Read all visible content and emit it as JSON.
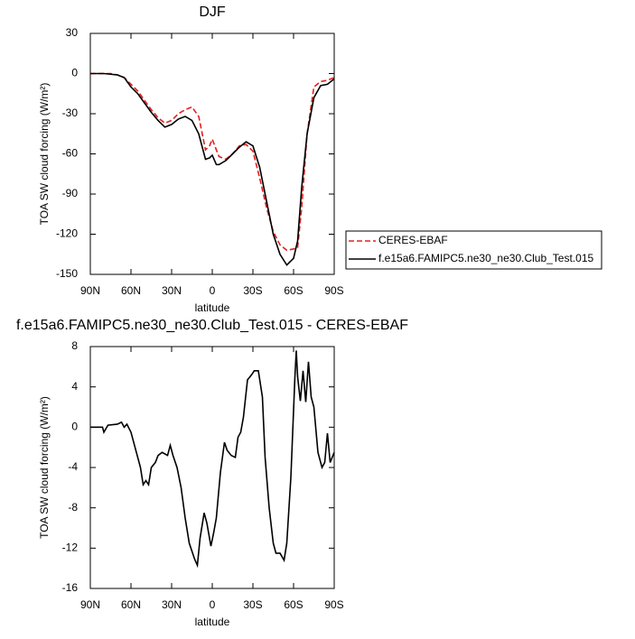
{
  "chart_data": [
    {
      "type": "line",
      "title": "DJF",
      "xlabel": "latitude",
      "ylabel": "TOA SW cloud forcing (W/m²)",
      "x": [
        90,
        85,
        80,
        75,
        70,
        65,
        60,
        55,
        50,
        45,
        40,
        35,
        30,
        25,
        20,
        15,
        10,
        5,
        2,
        0,
        -3,
        -5,
        -10,
        -15,
        -20,
        -25,
        -30,
        -35,
        -40,
        -45,
        -50,
        -55,
        -60,
        -63,
        -66,
        -70,
        -75,
        -80,
        -85,
        -90
      ],
      "xlim": [
        90,
        -90
      ],
      "xticks": [
        {
          "value": 90,
          "label": "90N"
        },
        {
          "value": 60,
          "label": "60N"
        },
        {
          "value": 30,
          "label": "30N"
        },
        0,
        {
          "value": -30,
          "label": "30S"
        },
        {
          "value": -60,
          "label": "60S"
        },
        {
          "value": -90,
          "label": "90S"
        }
      ],
      "ylim": [
        -150,
        30
      ],
      "yticks": [
        -150,
        -120,
        -90,
        -60,
        -30,
        0,
        30
      ],
      "legend": "right",
      "series": [
        {
          "name": "CERES-EBAF",
          "color": "#e32020",
          "style": "dashed",
          "values": [
            0,
            0,
            0,
            0,
            -1,
            -3,
            -8,
            -13,
            -20,
            -27,
            -33,
            -37,
            -35,
            -30,
            -27,
            -25,
            -32,
            -57,
            -54,
            -49,
            -57,
            -62,
            -64,
            -60,
            -54,
            -53,
            -58,
            -78,
            -100,
            -118,
            -128,
            -132,
            -131,
            -130,
            -100,
            -45,
            -10,
            -6,
            -5,
            -3
          ]
        },
        {
          "name": "f.e15a6.FAMIPC5.ne30_ne30.Club_Test.015",
          "color": "#000000",
          "style": "solid",
          "values": [
            0,
            0,
            0,
            -0.5,
            -1,
            -3,
            -10,
            -15,
            -22,
            -29,
            -35,
            -40,
            -38,
            -34,
            -32,
            -35,
            -45,
            -64,
            -63,
            -61,
            -68,
            -68,
            -65,
            -60,
            -55,
            -51,
            -54,
            -70,
            -95,
            -120,
            -135,
            -143,
            -138,
            -125,
            -85,
            -45,
            -18,
            -9,
            -8,
            -4
          ]
        }
      ]
    },
    {
      "type": "line",
      "title": "f.e15a6.FAMIPC5.ne30_ne30.Club_Test.015 - CERES-EBAF",
      "xlabel": "latitude",
      "ylabel": "TOA SW cloud forcing (W/m²)",
      "x": [
        90,
        81,
        80,
        77,
        70,
        67,
        65,
        63,
        60,
        57,
        53,
        51,
        49,
        47,
        45,
        42,
        40,
        37,
        33,
        31,
        29,
        26,
        23,
        20,
        17,
        13,
        11,
        9,
        6,
        4,
        1,
        -1,
        -3,
        -6,
        -9,
        -11,
        -14,
        -17,
        -19,
        -21,
        -23,
        -26,
        -29,
        -31,
        -34,
        -37,
        -39,
        -42,
        -45,
        -47,
        -50,
        -53,
        -55,
        -58,
        -61,
        -62,
        -63,
        -65,
        -67,
        -69,
        -71,
        -73,
        -75,
        -78,
        -81,
        -83,
        -85,
        -87,
        -90
      ],
      "xlim": [
        90,
        -90
      ],
      "xticks": [
        {
          "value": 90,
          "label": "90N"
        },
        {
          "value": 60,
          "label": "60N"
        },
        {
          "value": 30,
          "label": "30N"
        },
        0,
        {
          "value": -30,
          "label": "30S"
        },
        {
          "value": -60,
          "label": "60S"
        },
        {
          "value": -90,
          "label": "90S"
        }
      ],
      "ylim": [
        -16,
        8
      ],
      "yticks": [
        -16,
        -12,
        -8,
        -4,
        0,
        4,
        8
      ],
      "series": [
        {
          "color": "#000000",
          "style": "solid",
          "values": [
            0,
            0,
            -0.5,
            0.2,
            0.3,
            0.5,
            0,
            0.3,
            -0.5,
            -2,
            -4,
            -5.7,
            -5.3,
            -5.7,
            -4,
            -3.5,
            -2.8,
            -2.5,
            -2.8,
            -1.8,
            -2.8,
            -4,
            -6,
            -9,
            -11.5,
            -13.1,
            -13.7,
            -11,
            -8.5,
            -9.5,
            -11.8,
            -10.5,
            -9,
            -4.5,
            -1.5,
            -2.3,
            -2.8,
            -3,
            -1,
            -0.5,
            1,
            4.7,
            5.2,
            5.6,
            5.6,
            3,
            -3,
            -8,
            -11.5,
            -12.5,
            -12.5,
            -13.2,
            -11.5,
            -5,
            5,
            7.6,
            5,
            2.6,
            5.6,
            2.5,
            6.5,
            3,
            2,
            -2.5,
            -4,
            -3.5,
            -0.6,
            -3.5,
            -2.5
          ]
        }
      ]
    }
  ]
}
